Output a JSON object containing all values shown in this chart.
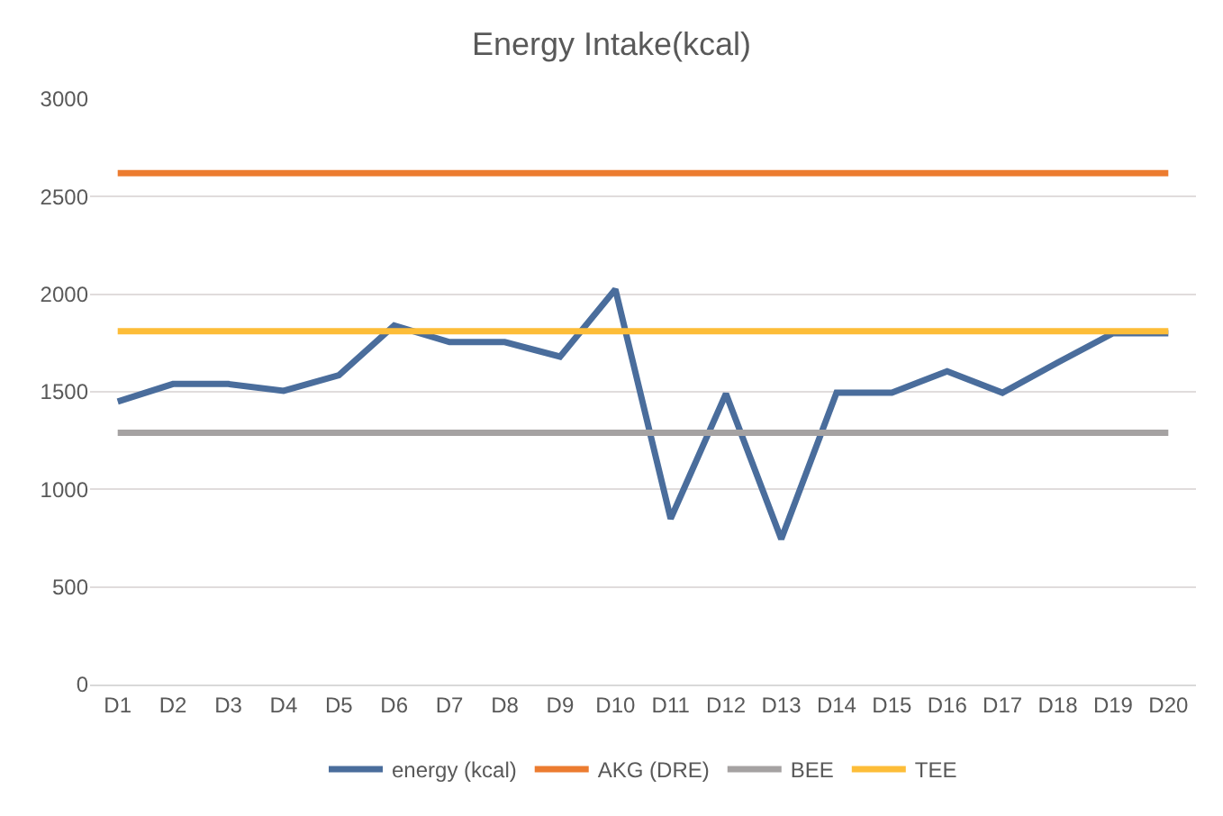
{
  "chart_data": {
    "type": "line",
    "title": "Energy Intake(kcal)",
    "categories": [
      "D1",
      "D2",
      "D3",
      "D4",
      "D5",
      "D6",
      "D7",
      "D8",
      "D9",
      "D10",
      "D11",
      "D12",
      "D13",
      "D14",
      "D15",
      "D16",
      "D17",
      "D18",
      "D19",
      "D20"
    ],
    "series": [
      {
        "name": "energy (kcal)",
        "color": "#4a6d9c",
        "values": [
          1450,
          1540,
          1540,
          1505,
          1585,
          1840,
          1755,
          1755,
          1680,
          2025,
          850,
          1490,
          745,
          1495,
          1495,
          1605,
          1495,
          1650,
          1800,
          1800
        ]
      },
      {
        "name": "AKG (DRE)",
        "color": "#ec7c30",
        "values": [
          2620,
          2620,
          2620,
          2620,
          2620,
          2620,
          2620,
          2620,
          2620,
          2620,
          2620,
          2620,
          2620,
          2620,
          2620,
          2620,
          2620,
          2620,
          2620,
          2620
        ]
      },
      {
        "name": "BEE",
        "color": "#a5a2a2",
        "values": [
          1290,
          1290,
          1290,
          1290,
          1290,
          1290,
          1290,
          1290,
          1290,
          1290,
          1290,
          1290,
          1290,
          1290,
          1290,
          1290,
          1290,
          1290,
          1290,
          1290
        ]
      },
      {
        "name": "TEE",
        "color": "#fdbd38",
        "values": [
          1810,
          1810,
          1810,
          1810,
          1810,
          1810,
          1810,
          1810,
          1810,
          1810,
          1810,
          1810,
          1810,
          1810,
          1810,
          1810,
          1810,
          1810,
          1810,
          1810
        ]
      }
    ],
    "ylim": [
      0,
      3000
    ],
    "yticks": [
      0,
      500,
      1000,
      1500,
      2000,
      2500,
      3000
    ],
    "grid": "y",
    "legend": "bottom",
    "marker": "none",
    "line_style": "solid"
  }
}
